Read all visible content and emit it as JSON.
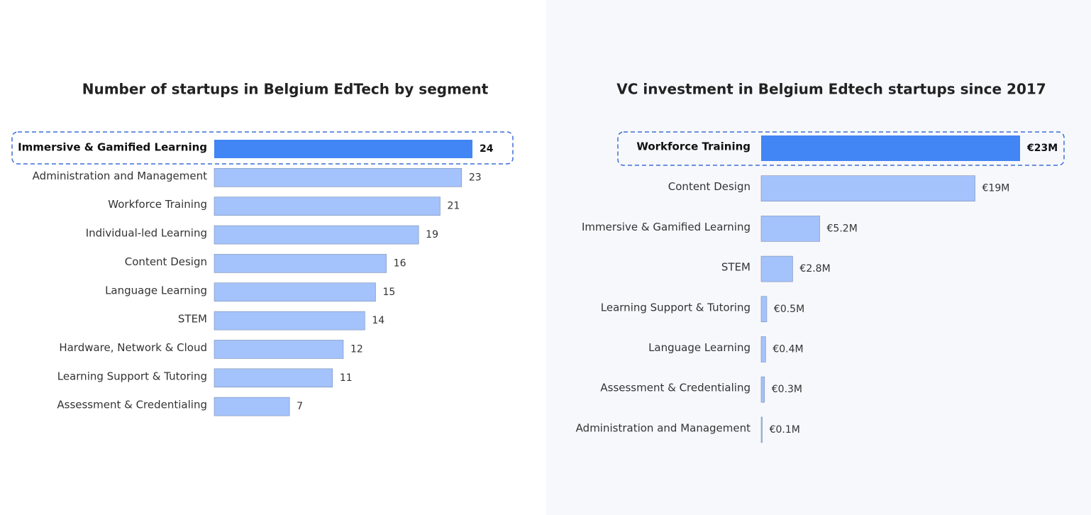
{
  "chart_data": [
    {
      "type": "hbar",
      "title": "Number of startups in Belgium EdTech by segment",
      "categories": [
        "Immersive & Gamified Learning",
        "Administration and Management",
        "Workforce Training",
        "Individual-led Learning",
        "Content Design",
        "Language Learning",
        "STEM",
        "Hardware, Network & Cloud",
        "Learning Support & Tutoring",
        "Assessment & Credentialing"
      ],
      "values": [
        24,
        23,
        21,
        19,
        16,
        15,
        14,
        12,
        11,
        7
      ],
      "color": "#a4c2fb",
      "highlight_color": "#4285f4",
      "highlight": 0
    },
    {
      "type": "hbar",
      "title": "VC investment in Belgium Edtech startups since 2017",
      "categories": [
        "Workforce Training",
        "Content Design",
        "Immersive & Gamified Learning",
        "STEM",
        "Learning Support & Tutoring",
        "Language Learning",
        "Assessment & Credentialing",
        "Administration and Management"
      ],
      "values": [
        23,
        19,
        5.2,
        2.8,
        0.5,
        0.4,
        0.3,
        0.1
      ],
      "value_labels": [
        "€23M",
        "€19M",
        "€5.2M",
        "€2.8M",
        "€0.5M",
        "€0.4M",
        "€0.3M",
        "€0.1M"
      ],
      "color": "#a4c2fb",
      "highlight_color": "#4285f4",
      "highlight": 0
    }
  ]
}
